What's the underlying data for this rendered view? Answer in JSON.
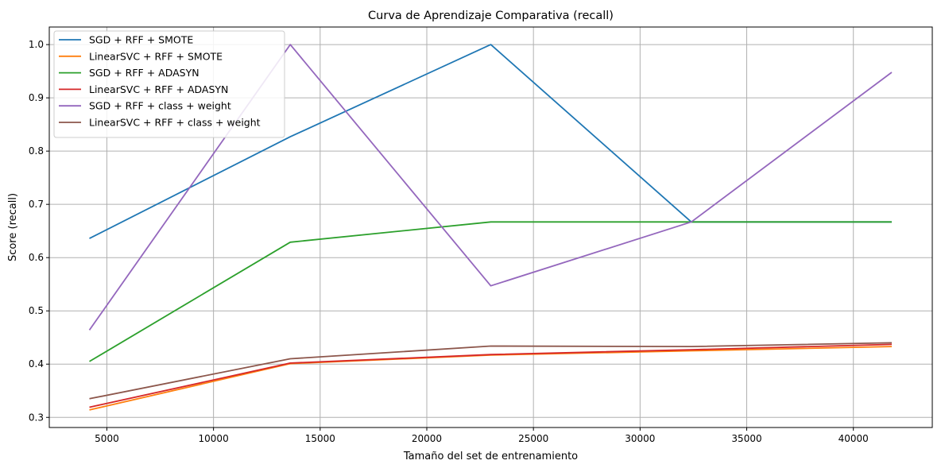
{
  "chart_data": {
    "type": "line",
    "title": "Curva de Aprendizaje Comparativa (recall)",
    "xlabel": "Tamaño del set de entrenamiento",
    "ylabel": "Score (recall)",
    "x": [
      4180,
      13600,
      23000,
      32400,
      41800
    ],
    "xlim": [
      2300,
      43700
    ],
    "ylim": [
      0.281,
      1.033
    ],
    "xticks": [
      5000,
      10000,
      15000,
      20000,
      25000,
      30000,
      35000,
      40000
    ],
    "yticks": [
      0.3,
      0.4,
      0.5,
      0.6,
      0.7,
      0.8,
      0.9,
      1.0
    ],
    "grid": true,
    "legend_position": "top-left",
    "series": [
      {
        "name": "SGD + RFF + SMOTE",
        "color": "#1f77b4",
        "values": [
          0.636,
          0.827,
          1.0,
          0.667,
          0.667
        ]
      },
      {
        "name": "LinearSVC + RFF + SMOTE",
        "color": "#ff7f0e",
        "values": [
          0.314,
          0.401,
          0.417,
          0.425,
          0.433
        ]
      },
      {
        "name": "SGD + RFF + ADASYN",
        "color": "#2ca02c",
        "values": [
          0.405,
          0.629,
          0.667,
          0.667,
          0.667
        ]
      },
      {
        "name": "LinearSVC + RFF + ADASYN",
        "color": "#d62728",
        "values": [
          0.319,
          0.402,
          0.418,
          0.427,
          0.437
        ]
      },
      {
        "name": "SGD + RFF + class + weight",
        "color": "#9467bd",
        "values": [
          0.464,
          1.0,
          0.547,
          0.667,
          0.948
        ]
      },
      {
        "name": "LinearSVC + RFF + class + weight",
        "color": "#8c564b",
        "values": [
          0.335,
          0.41,
          0.434,
          0.433,
          0.44
        ]
      }
    ]
  }
}
